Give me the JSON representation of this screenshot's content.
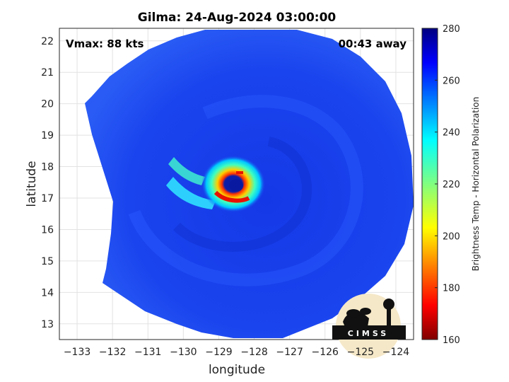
{
  "title": "Gilma: 24-Aug-2024 03:00:00",
  "vmax_label": "Vmax: 88 kts",
  "time_label": "00:43 away",
  "xlabel": "longitude",
  "ylabel": "latitude",
  "x_ticks": [
    "-133",
    "-132",
    "-131",
    "-130",
    "-129",
    "-128",
    "-127",
    "-126",
    "-125",
    "-124"
  ],
  "y_ticks": [
    "22",
    "21",
    "20",
    "19",
    "18",
    "17",
    "16",
    "15",
    "14",
    "13"
  ],
  "colorbar": {
    "label": "Brightness Temp - Horizontal Polarization",
    "ticks": [
      "280",
      "260",
      "240",
      "220",
      "200",
      "180",
      "160"
    ],
    "colormap": "jet",
    "range": [
      160,
      280
    ]
  },
  "logo_text": "CIMSS",
  "colors": {
    "background_swath": "#1a3fe0",
    "storm_core": "#ff2a00",
    "eye": "#0a1aa0"
  },
  "chart_data": {
    "type": "heatmap",
    "title": "Gilma: 24-Aug-2024 03:00:00",
    "xlabel": "longitude",
    "ylabel": "latitude",
    "xlim": [
      -133.5,
      -123.5
    ],
    "ylim": [
      12.5,
      22.4
    ],
    "storm_center": {
      "lon": -128.1,
      "lat": 17.2
    },
    "vmax_kts": 88,
    "colorbar_range": [
      160,
      280
    ],
    "grid": true
  }
}
